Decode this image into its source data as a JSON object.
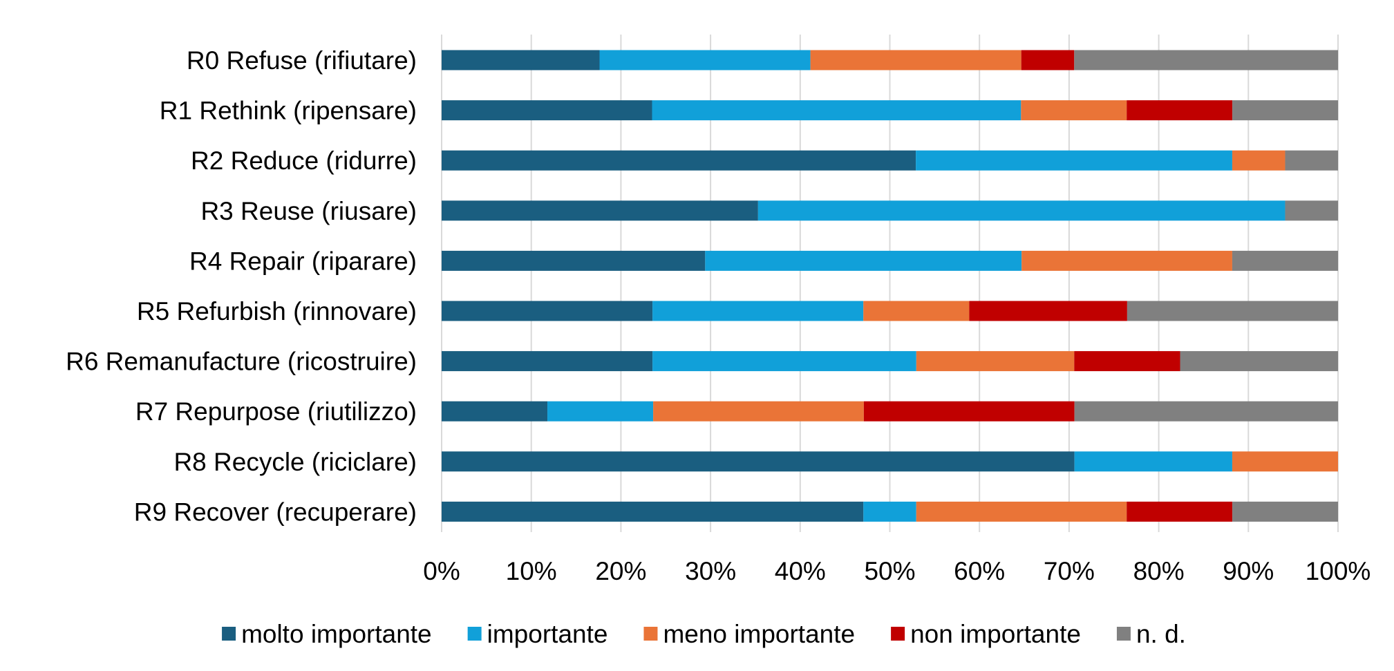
{
  "chart_data": {
    "type": "bar",
    "orientation": "horizontal",
    "stacked": "percent",
    "categories": [
      "R0 Refuse (rifiutare)",
      "R1 Rethink (ripensare)",
      "R2 Reduce (ridurre)",
      "R3 Reuse (riusare)",
      "R4 Repair (riparare)",
      "R5 Refurbish (rinnovare)",
      "R6 Remanufacture (ricostruire)",
      "R7 Repurpose (riutilizzo)",
      "R8 Recycle (riciclare)",
      "R9 Recover (recuperare)"
    ],
    "series": [
      {
        "name": "molto importante",
        "color": "#1a5e80",
        "values": [
          17.6,
          23.5,
          52.9,
          35.3,
          29.4,
          23.5,
          23.5,
          11.8,
          70.6,
          47.1
        ]
      },
      {
        "name": "importante",
        "color": "#11a0d9",
        "values": [
          23.5,
          41.2,
          35.3,
          58.8,
          35.3,
          23.5,
          29.4,
          11.8,
          17.6,
          5.9
        ]
      },
      {
        "name": "meno importante",
        "color": "#ea7437",
        "values": [
          23.5,
          11.8,
          5.9,
          0,
          23.5,
          11.8,
          17.6,
          23.5,
          11.8,
          23.5
        ]
      },
      {
        "name": "non importante",
        "color": "#c00000",
        "values": [
          5.9,
          11.8,
          0,
          0,
          0,
          17.6,
          11.8,
          23.5,
          0,
          11.8
        ]
      },
      {
        "name": "n. d.",
        "color": "#808080",
        "values": [
          29.4,
          11.8,
          5.9,
          5.9,
          11.8,
          23.5,
          17.6,
          29.4,
          0,
          11.8
        ]
      }
    ],
    "xticks": [
      "0%",
      "10%",
      "20%",
      "30%",
      "40%",
      "50%",
      "60%",
      "70%",
      "80%",
      "90%",
      "100%"
    ],
    "xlim": [
      0,
      100
    ],
    "grid": "vertical",
    "legend": "bottom",
    "title": "",
    "xlabel": "",
    "ylabel": ""
  },
  "colors": {
    "grid": "#d9d9d9",
    "text": "#000000"
  }
}
